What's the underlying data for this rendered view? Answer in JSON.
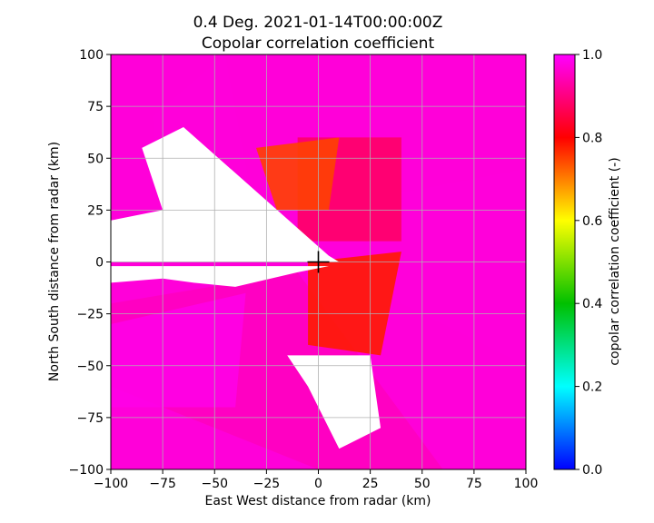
{
  "chart_data": {
    "type": "heatmap",
    "title": "0.4 Deg. 2021-01-14T00:00:00Z",
    "subtitle": "Copolar correlation coefficient",
    "xlabel": "East West distance from radar (km)",
    "ylabel": "North South distance from radar (km)",
    "xlim": [
      -100,
      100
    ],
    "ylim": [
      -100,
      100
    ],
    "xticks": [
      -100,
      -75,
      -50,
      -25,
      0,
      25,
      50,
      75,
      100
    ],
    "yticks": [
      -100,
      -75,
      -50,
      -25,
      0,
      25,
      50,
      75,
      100
    ],
    "xtick_labels": [
      "−100",
      "−75",
      "−50",
      "−25",
      "0",
      "25",
      "50",
      "75",
      "100"
    ],
    "ytick_labels": [
      "−100",
      "−75",
      "−50",
      "−25",
      "0",
      "25",
      "50",
      "75",
      "100"
    ],
    "grid": true,
    "radar_marker": {
      "x": 0,
      "y": 0,
      "symbol": "+"
    },
    "colorbar": {
      "label": "copolar correlation coefficient (-)",
      "range": [
        0.0,
        1.0
      ],
      "ticks": [
        0.0,
        0.2,
        0.4,
        0.6,
        0.8,
        1.0
      ],
      "tick_labels": [
        "0.0",
        "0.2",
        "0.4",
        "0.6",
        "0.8",
        "1.0"
      ],
      "colors": [
        "#0000ff",
        "#00ffff",
        "#00c000",
        "#ffff00",
        "#ff0000",
        "#ff00ff"
      ]
    },
    "regions": [
      {
        "value": 0.97,
        "x": [
          -30,
          100,
          100,
          0,
          -75,
          -80,
          -45
        ],
        "y": [
          20,
          45,
          -50,
          0,
          30,
          70,
          100
        ]
      },
      {
        "value": 0.95,
        "x": [
          -100,
          -10,
          60,
          0,
          -100
        ],
        "y": [
          -20,
          -5,
          -100,
          -100,
          -60
        ]
      },
      {
        "value": 0.98,
        "x": [
          -100,
          -35,
          -40,
          -100
        ],
        "y": [
          -30,
          -15,
          -70,
          -70
        ]
      },
      {
        "value": 0.88,
        "x": [
          -10,
          40,
          40,
          -10
        ],
        "y": [
          60,
          60,
          10,
          10
        ]
      },
      {
        "value": 0.75,
        "x": [
          -30,
          10,
          5,
          -20
        ],
        "y": [
          55,
          60,
          25,
          25
        ]
      },
      {
        "value": 0.78,
        "x": [
          -5,
          40,
          30,
          -5
        ],
        "y": [
          0,
          5,
          -45,
          -40
        ]
      }
    ],
    "empty_regions": [
      {
        "x": [
          -100,
          -75,
          -85,
          -65,
          5,
          10,
          -100
        ],
        "y": [
          20,
          25,
          55,
          65,
          3,
          0,
          0
        ]
      },
      {
        "x": [
          -100,
          -75,
          -60,
          -40,
          -10,
          5,
          -100
        ],
        "y": [
          -10,
          -8,
          -10,
          -12,
          -5,
          -2,
          -2
        ]
      },
      {
        "x": [
          -15,
          25,
          30,
          10,
          -5
        ],
        "y": [
          -45,
          -45,
          -80,
          -90,
          -60
        ]
      }
    ]
  }
}
